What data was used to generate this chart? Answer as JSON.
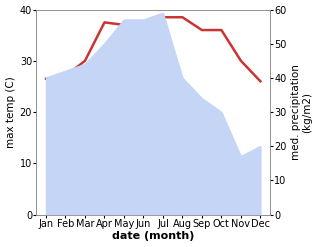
{
  "months": [
    "Jan",
    "Feb",
    "Mar",
    "Apr",
    "May",
    "Jun",
    "Jul",
    "Aug",
    "Sep",
    "Oct",
    "Nov",
    "Dec"
  ],
  "month_indices": [
    1,
    2,
    3,
    4,
    5,
    6,
    7,
    8,
    9,
    10,
    11,
    12
  ],
  "temperature": [
    26.5,
    27.0,
    30.0,
    37.5,
    37.0,
    36.5,
    38.5,
    38.5,
    36.0,
    36.0,
    30.0,
    26.0
  ],
  "precipitation": [
    40,
    42,
    44,
    50,
    57,
    57,
    59,
    40,
    34,
    30,
    17,
    20
  ],
  "temp_color": "#cc3333",
  "precip_fill_color": "#c5d5f5",
  "xlabel": "date (month)",
  "ylabel_left": "max temp (C)",
  "ylabel_right": "med. precipitation\n(kg/m2)",
  "ylim_left": [
    0,
    40
  ],
  "ylim_right": [
    0,
    60
  ],
  "yticks_left": [
    0,
    10,
    20,
    30,
    40
  ],
  "yticks_right": [
    0,
    10,
    20,
    30,
    40,
    50,
    60
  ],
  "background_color": "#ffffff",
  "temp_linewidth": 1.8,
  "xlabel_fontsize": 8,
  "ylabel_fontsize": 7.5,
  "tick_fontsize": 7
}
